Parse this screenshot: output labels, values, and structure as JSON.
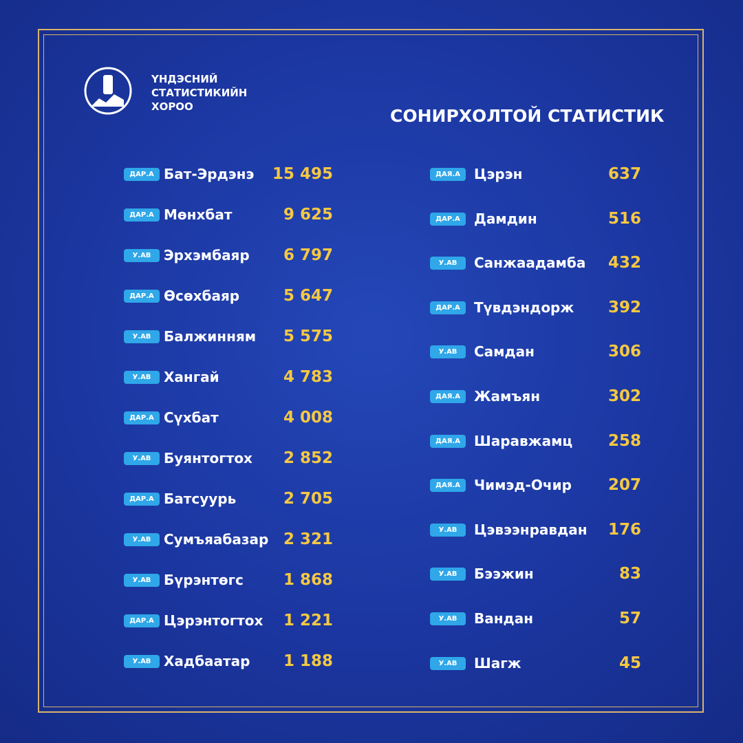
{
  "header": {
    "org": [
      "ҮНДЭСНИЙ",
      "СТАТИСТИКИЙН",
      "ХОРОО"
    ],
    "title": "СОНИРХОЛТОЙ СТАТИСТИК"
  },
  "left": [
    {
      "badge": "ДАР.А",
      "name": "Бат-Эрдэнэ",
      "value": "15 495"
    },
    {
      "badge": "ДАР.А",
      "name": "Мөнхбат",
      "value": "9 625"
    },
    {
      "badge": "У.АВ",
      "name": "Эрхэмбаяр",
      "value": "6 797"
    },
    {
      "badge": "ДАР.А",
      "name": "Өсөхбаяр",
      "value": "5 647"
    },
    {
      "badge": "У.АВ",
      "name": "Балжинням",
      "value": "5 575"
    },
    {
      "badge": "У.АВ",
      "name": "Хангай",
      "value": "4 783"
    },
    {
      "badge": "ДАР.А",
      "name": "Сүхбат",
      "value": "4 008"
    },
    {
      "badge": "У.АВ",
      "name": "Буянтогтох",
      "value": "2 852"
    },
    {
      "badge": "ДАР.А",
      "name": "Батсуурь",
      "value": "2 705"
    },
    {
      "badge": "У.АВ",
      "name": "Сумъяабазар",
      "value": "2 321"
    },
    {
      "badge": "У.АВ",
      "name": "Бүрэнтөгс",
      "value": "1 868"
    },
    {
      "badge": "ДАР.А",
      "name": "Цэрэнтогтох",
      "value": "1 221"
    },
    {
      "badge": "У.АВ",
      "name": "Хадбаатар",
      "value": "1 188"
    }
  ],
  "right": [
    {
      "badge": "ДАЯ.А",
      "name": "Цэрэн",
      "value": "637"
    },
    {
      "badge": "ДАР.А",
      "name": "Дамдин",
      "value": "516"
    },
    {
      "badge": "У.АВ",
      "name": "Санжаадамба",
      "value": "432"
    },
    {
      "badge": "ДАР.А",
      "name": "Түвдэндорж",
      "value": "392"
    },
    {
      "badge": "У.АВ",
      "name": "Самдан",
      "value": "306"
    },
    {
      "badge": "ДАЯ.А",
      "name": "Жамъян",
      "value": "302"
    },
    {
      "badge": "ДАЯ.А",
      "name": "Шаравжамц",
      "value": "258"
    },
    {
      "badge": "ДАЯ.А",
      "name": "Чимэд-Очир",
      "value": "207"
    },
    {
      "badge": "У.АВ",
      "name": "Цэвээнравдан",
      "value": "176"
    },
    {
      "badge": "У.АВ",
      "name": "Бээжин",
      "value": "83"
    },
    {
      "badge": "У.АВ",
      "name": "Вандан",
      "value": "57"
    },
    {
      "badge": "У.АВ",
      "name": "Шагж",
      "value": "45"
    }
  ]
}
